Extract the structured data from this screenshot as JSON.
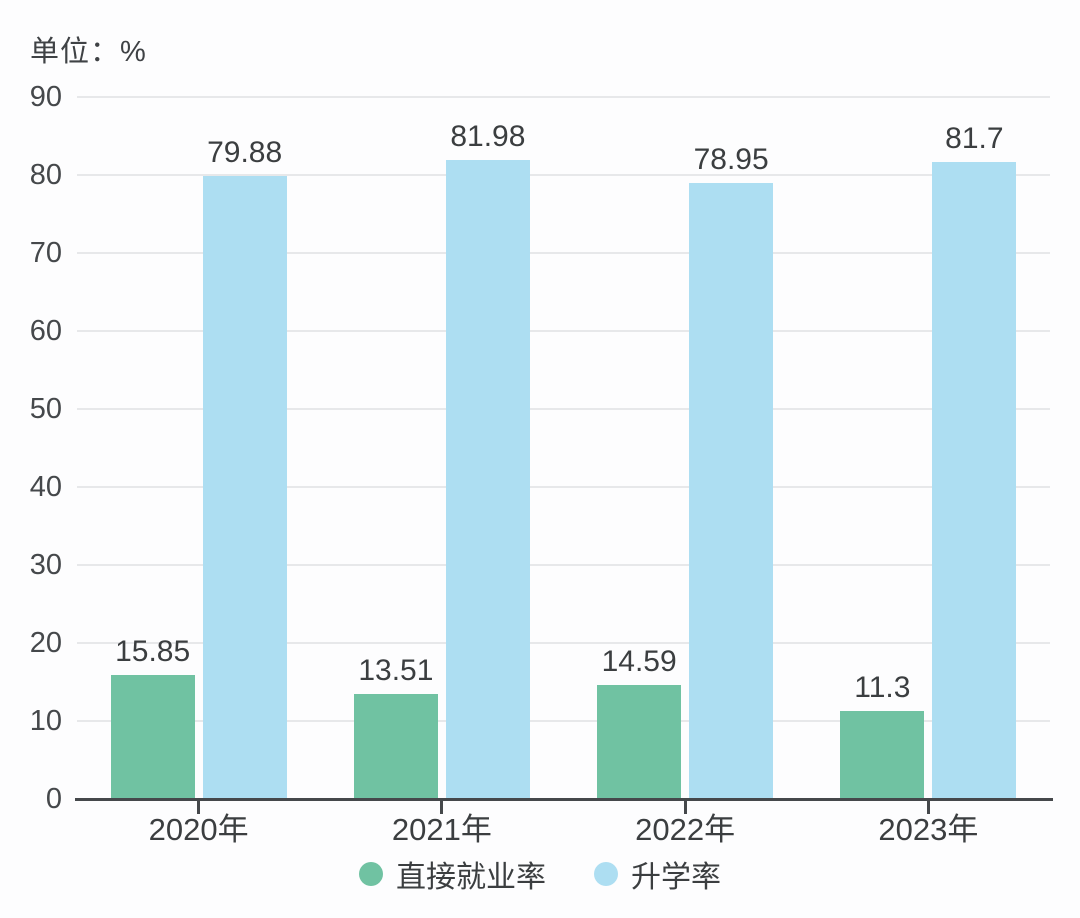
{
  "unit_label": "单位：%",
  "chart_data": {
    "type": "bar",
    "title": "",
    "unit": "单位：%",
    "categories": [
      "2020年",
      "2021年",
      "2022年",
      "2023年"
    ],
    "series": [
      {
        "name": "直接就业率",
        "color": "#70c2a2",
        "values": [
          15.85,
          13.51,
          14.59,
          11.3
        ]
      },
      {
        "name": "升学率",
        "color": "#addef2",
        "values": [
          79.88,
          81.98,
          78.95,
          81.7
        ]
      }
    ],
    "ylim": [
      0,
      90
    ],
    "ytick_interval": 10,
    "yticks": [
      0,
      10,
      20,
      30,
      40,
      50,
      60,
      70,
      80,
      90
    ],
    "grid": true,
    "value_labels": true,
    "legend_position": "bottom"
  },
  "colors": {
    "background": "#fdfdfe",
    "grid": "#e7e8ea",
    "axis": "#45484b",
    "text": "#3b3e40"
  }
}
